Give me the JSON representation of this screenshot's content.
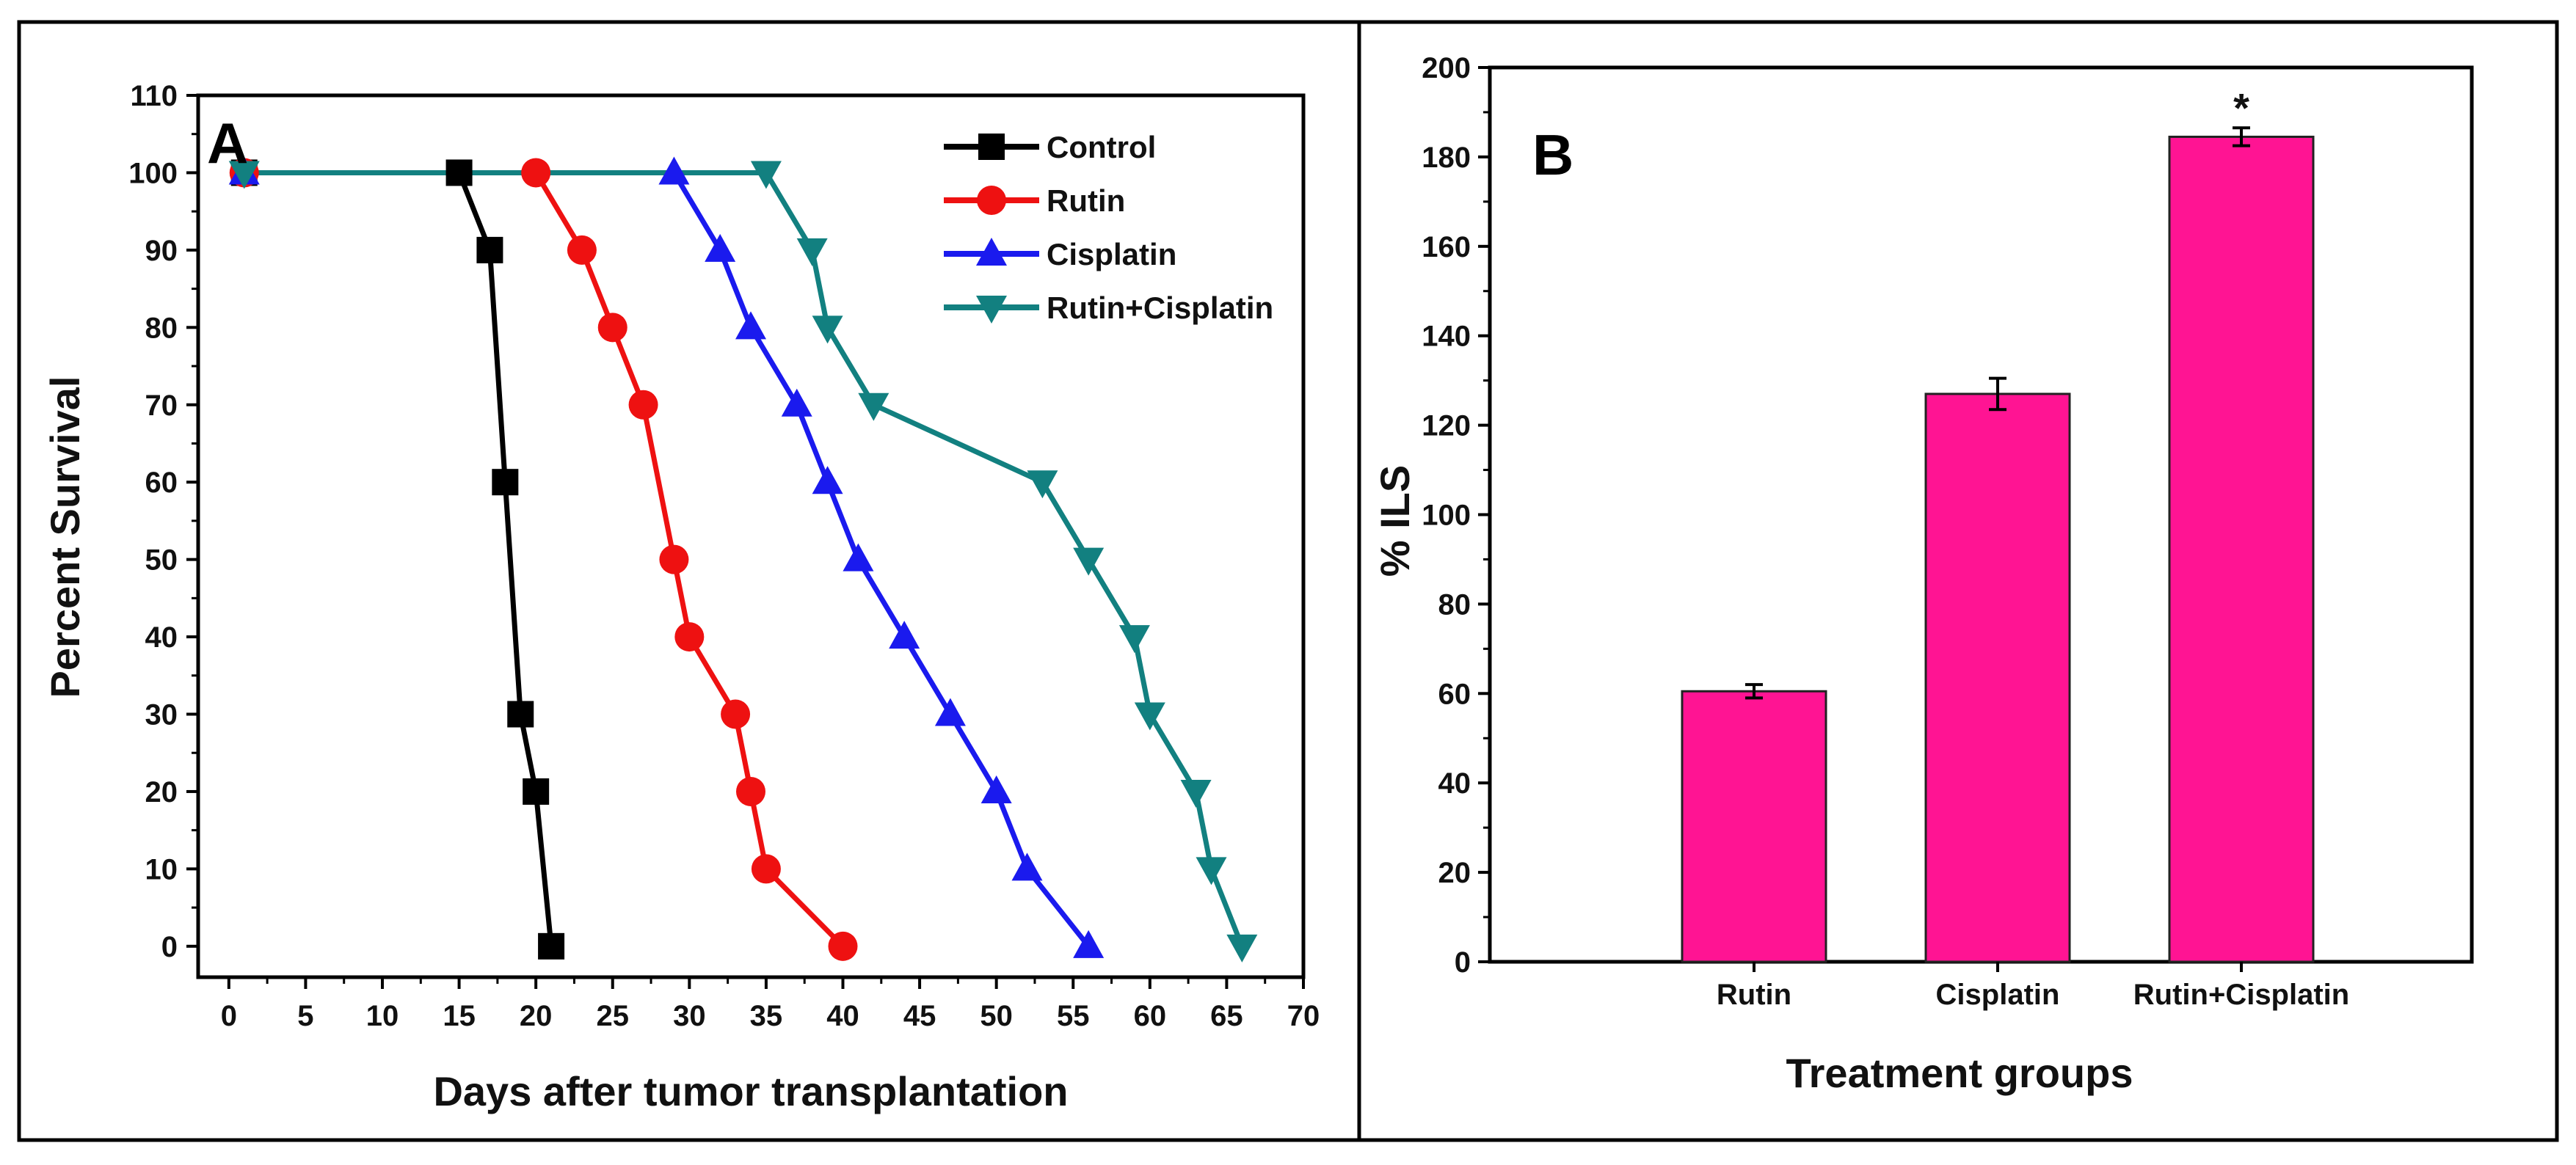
{
  "chart_data": [
    {
      "type": "line",
      "panel_label": "A",
      "xlabel": "Days after tumor transplantation",
      "ylabel": "Percent Survival",
      "xlim": [
        -2,
        70
      ],
      "ylim": [
        -4,
        110
      ],
      "xticks": [
        0,
        5,
        10,
        15,
        20,
        25,
        30,
        35,
        40,
        45,
        50,
        55,
        60,
        65,
        70
      ],
      "yticks": [
        0,
        10,
        20,
        30,
        40,
        50,
        60,
        70,
        80,
        90,
        100,
        110
      ],
      "legend_position": "top-right",
      "series": [
        {
          "name": "Control",
          "color": "#000000",
          "marker": "square",
          "x": [
            1,
            15,
            17,
            18,
            19,
            20,
            21
          ],
          "y": [
            100,
            100,
            90,
            60,
            30,
            20,
            0
          ]
        },
        {
          "name": "Rutin",
          "color": "#ee1111",
          "marker": "circle",
          "x": [
            1,
            20,
            23,
            25,
            27,
            29,
            30,
            33,
            34,
            35,
            40
          ],
          "y": [
            100,
            100,
            90,
            80,
            70,
            50,
            40,
            30,
            20,
            10,
            0
          ]
        },
        {
          "name": "Cisplatin",
          "color": "#1a1aee",
          "marker": "triangle-up",
          "x": [
            1,
            29,
            32,
            34,
            37,
            39,
            41,
            44,
            47,
            50,
            52,
            56
          ],
          "y": [
            100,
            100,
            90,
            80,
            70,
            60,
            50,
            40,
            30,
            20,
            10,
            0
          ]
        },
        {
          "name": "Rutin+Cisplatin",
          "color": "#128080",
          "marker": "triangle-down",
          "x": [
            1,
            35,
            38,
            39,
            42,
            53,
            56,
            59,
            60,
            63,
            64,
            66
          ],
          "y": [
            100,
            100,
            90,
            80,
            70,
            60,
            50,
            40,
            30,
            20,
            10,
            0
          ]
        }
      ]
    },
    {
      "type": "bar",
      "panel_label": "B",
      "xlabel": "Treatment groups",
      "ylabel": "% ILS",
      "ylim": [
        0,
        200
      ],
      "yticks": [
        0,
        20,
        40,
        60,
        80,
        100,
        120,
        140,
        160,
        180,
        200
      ],
      "bar_color": "#ff1493",
      "categories": [
        "Rutin",
        "Cisplatin",
        "Rutin+Cisplatin"
      ],
      "values": [
        60.5,
        127,
        184.5
      ],
      "errors": [
        1.5,
        3.5,
        2.0
      ],
      "annotations": [
        "",
        "",
        "*"
      ]
    }
  ]
}
